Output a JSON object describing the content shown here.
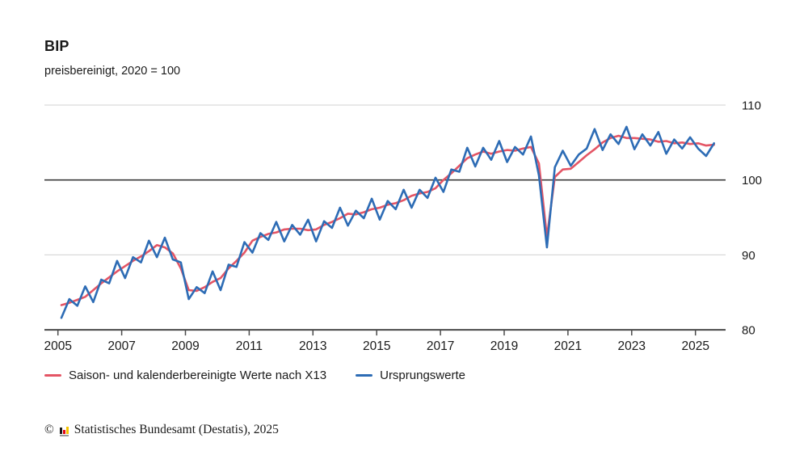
{
  "header": {
    "title": "BIP",
    "subtitle": "preisbereinigt, 2020 = 100"
  },
  "legend": {
    "adjusted_label": "Saison- und kalenderbereinigte Werte nach X13",
    "original_label": "Ursprungswerte"
  },
  "footer": {
    "copyright": "©",
    "text": "Statistisches Bundesamt (Destatis), 2025"
  },
  "colors": {
    "adjusted_line": "#e45565",
    "original_line": "#2d6cb5",
    "grid_light": "#d9d9d9",
    "grid_reference": "#3b3b3b",
    "axis": "#4a4a4a",
    "label_text": "#1a1a1a"
  },
  "chart_data": {
    "type": "line",
    "title": "BIP",
    "subtitle": "preisbereinigt, 2020 = 100",
    "x_unit": "quarter",
    "x_start": "2005-Q1",
    "x_end": "2025-Q3",
    "x_tick_labels": [
      "2005",
      "2007",
      "2009",
      "2011",
      "2013",
      "2015",
      "2017",
      "2019",
      "2021",
      "2023",
      "2025"
    ],
    "ylim": [
      80,
      110
    ],
    "y_ticks": [
      80,
      90,
      100,
      110
    ],
    "reference_line": 100,
    "grid": true,
    "legend_position": "bottom",
    "series": [
      {
        "name": "Saison- und kalenderbereinigte Werte nach X13",
        "color": "#e45565",
        "values": [
          83.3,
          83.6,
          84.0,
          84.4,
          85.3,
          86.2,
          87.0,
          87.8,
          88.5,
          89.2,
          89.8,
          90.5,
          91.3,
          91.0,
          90.2,
          88.2,
          85.3,
          85.2,
          85.7,
          86.4,
          86.9,
          88.2,
          89.2,
          90.3,
          91.9,
          92.4,
          92.8,
          93.0,
          93.4,
          93.5,
          93.5,
          93.3,
          93.4,
          94.0,
          94.4,
          94.9,
          95.5,
          95.4,
          95.7,
          96.1,
          96.3,
          96.7,
          96.9,
          97.3,
          97.9,
          98.2,
          98.4,
          98.9,
          100.0,
          100.9,
          101.9,
          102.9,
          103.4,
          103.8,
          103.5,
          103.8,
          104.0,
          103.9,
          104.2,
          104.4,
          102.2,
          92.4,
          100.4,
          101.4,
          101.5,
          102.4,
          103.3,
          104.1,
          105.0,
          105.6,
          105.9,
          105.6,
          105.6,
          105.5,
          105.4,
          105.1,
          105.2,
          104.9,
          105.0,
          104.8,
          104.9,
          104.6,
          104.7
        ]
      },
      {
        "name": "Ursprungswerte",
        "color": "#2d6cb5",
        "values": [
          81.6,
          84.1,
          83.2,
          85.8,
          83.7,
          86.7,
          86.2,
          89.2,
          86.9,
          89.7,
          89.0,
          91.9,
          89.7,
          92.3,
          89.4,
          89.0,
          84.1,
          85.7,
          84.9,
          87.8,
          85.3,
          88.7,
          88.4,
          91.7,
          90.3,
          92.9,
          92.0,
          94.4,
          91.8,
          94.0,
          92.7,
          94.7,
          91.8,
          94.5,
          93.6,
          96.3,
          93.9,
          95.9,
          94.9,
          97.5,
          94.7,
          97.2,
          96.1,
          98.7,
          96.3,
          98.7,
          97.6,
          100.3,
          98.4,
          101.4,
          101.1,
          104.3,
          101.8,
          104.3,
          102.7,
          105.2,
          102.4,
          104.4,
          103.4,
          105.8,
          100.6,
          91.0,
          101.7,
          103.9,
          101.9,
          103.4,
          104.2,
          106.8,
          104.0,
          106.1,
          104.8,
          107.1,
          104.1,
          106.1,
          104.6,
          106.4,
          103.5,
          105.4,
          104.2,
          105.7,
          104.2,
          103.2,
          104.9
        ]
      }
    ]
  }
}
